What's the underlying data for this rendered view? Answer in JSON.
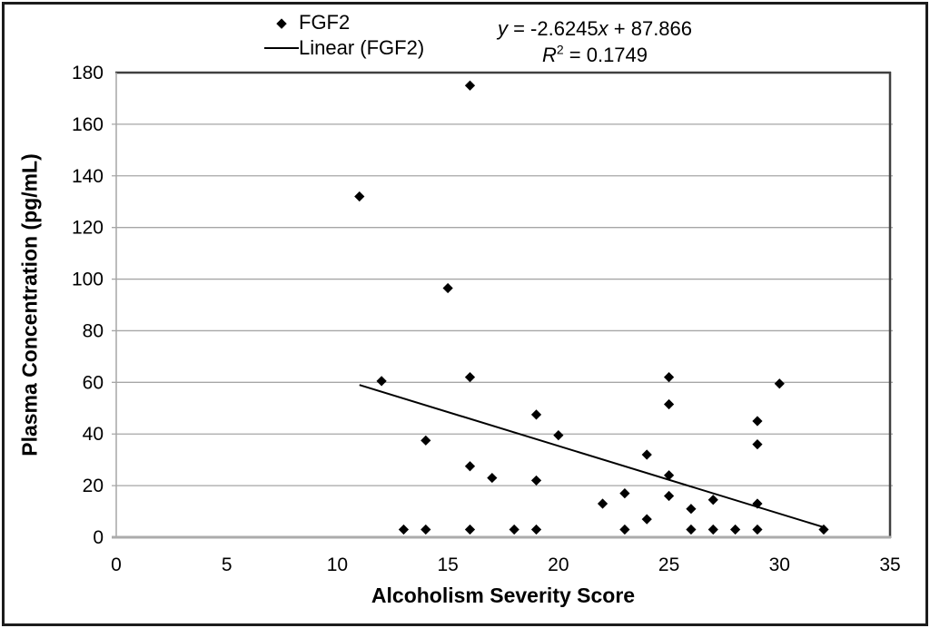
{
  "chart_data": {
    "type": "scatter",
    "xlabel": "Alcoholism Severity Score",
    "ylabel": "Plasma Concentration (pg/mL)",
    "xlim": [
      0,
      35
    ],
    "ylim": [
      0,
      180
    ],
    "x_ticks": [
      0,
      5,
      10,
      15,
      20,
      25,
      30,
      35
    ],
    "y_ticks": [
      0,
      20,
      40,
      60,
      80,
      100,
      120,
      140,
      160,
      180
    ],
    "grid": "horizontal-only",
    "legend": {
      "position": "top",
      "entries": [
        {
          "label": "FGF2",
          "marker": "diamond"
        },
        {
          "label": "Linear (FGF2)",
          "marker": "line"
        }
      ]
    },
    "series": [
      {
        "name": "FGF2",
        "marker": "diamond",
        "color": "#000000",
        "points": [
          [
            11,
            132
          ],
          [
            12,
            60.5
          ],
          [
            13,
            3
          ],
          [
            14,
            3
          ],
          [
            14,
            37.5
          ],
          [
            15,
            96.5
          ],
          [
            16,
            3
          ],
          [
            16,
            27.5
          ],
          [
            16,
            62
          ],
          [
            16,
            175
          ],
          [
            17,
            23
          ],
          [
            18,
            3
          ],
          [
            19,
            3
          ],
          [
            19,
            22
          ],
          [
            19,
            47.5
          ],
          [
            20,
            39.5
          ],
          [
            22,
            13
          ],
          [
            23,
            3
          ],
          [
            23,
            17
          ],
          [
            24,
            7
          ],
          [
            24,
            32
          ],
          [
            25,
            16
          ],
          [
            25,
            24
          ],
          [
            25,
            51.5
          ],
          [
            25,
            62
          ],
          [
            26,
            3
          ],
          [
            26,
            11
          ],
          [
            27,
            3
          ],
          [
            27,
            14.5
          ],
          [
            28,
            3
          ],
          [
            29,
            3
          ],
          [
            29,
            13
          ],
          [
            29,
            36
          ],
          [
            29,
            45
          ],
          [
            30,
            59.5
          ],
          [
            32,
            3
          ]
        ]
      }
    ],
    "trendline": {
      "name": "Linear (FGF2)",
      "slope": -2.6245,
      "intercept": 87.866,
      "x_start": 11,
      "x_end": 32,
      "color": "#000000"
    },
    "annotation": {
      "equation": {
        "y_var": "y",
        "body": " = -2.6245",
        "x_var": "x",
        "tail": " + 87.866"
      },
      "r_squared": {
        "r_var": "R",
        "exp": "2",
        "rest": " = 0.1749"
      }
    },
    "colors": {
      "gridline": "#a6a6a6",
      "axis_line": "#ababab",
      "plot_border": "#404040",
      "marker": "#000000",
      "text": "#000000",
      "frame": "#1c1c1c"
    }
  }
}
